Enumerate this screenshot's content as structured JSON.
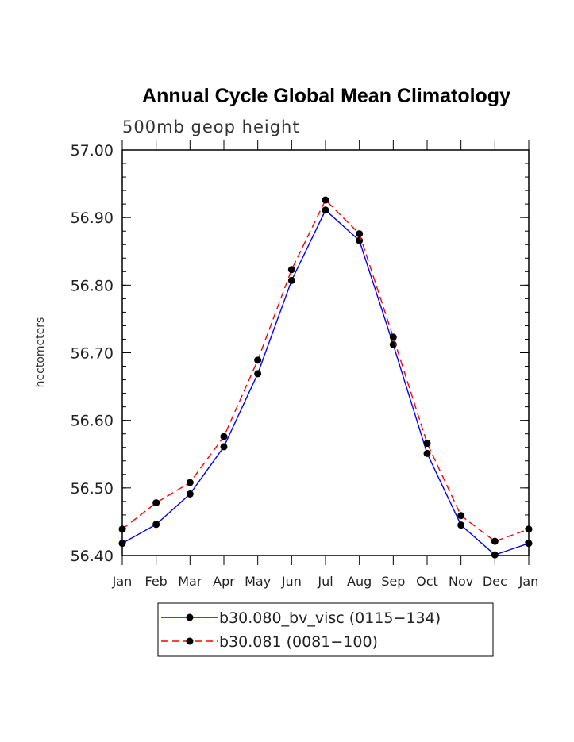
{
  "chart_data": {
    "type": "line",
    "title": "Annual Cycle Global Mean Climatology",
    "subtitle": "500mb geop height",
    "xlabel": "",
    "ylabel": "hectometers",
    "categories": [
      "Jan",
      "Feb",
      "Mar",
      "Apr",
      "May",
      "Jun",
      "Jul",
      "Aug",
      "Sep",
      "Oct",
      "Nov",
      "Dec",
      "Jan"
    ],
    "ylim": [
      56.4,
      57.0
    ],
    "yticks": [
      "56.40",
      "56.50",
      "56.60",
      "56.70",
      "56.80",
      "56.90",
      "57.00"
    ],
    "series": [
      {
        "name": "b30.080_bv_visc (0115−134)",
        "color": "#0000ff",
        "dash": "solid",
        "values": [
          56.418,
          56.446,
          56.491,
          56.561,
          56.669,
          56.807,
          56.911,
          56.866,
          56.712,
          56.551,
          56.445,
          56.401,
          56.418
        ]
      },
      {
        "name": "b30.081 (0081−100)",
        "color": "#ff0000",
        "dash": "dashed",
        "values": [
          56.439,
          56.478,
          56.508,
          56.576,
          56.689,
          56.823,
          56.926,
          56.876,
          56.723,
          56.566,
          56.459,
          56.421,
          56.439
        ]
      }
    ]
  }
}
